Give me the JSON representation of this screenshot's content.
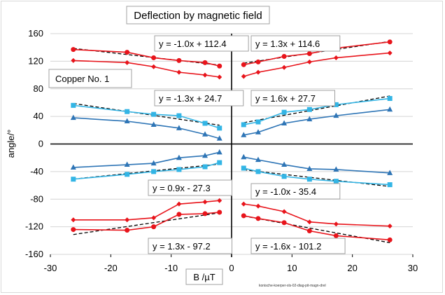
{
  "chart_data": {
    "type": "scatter",
    "title": "Deflection by magnetic field",
    "xlabel": "B /µT",
    "ylabel": "angle/°",
    "xlim": [
      -30,
      30
    ],
    "ylim": [
      -160,
      160
    ],
    "xticks": [
      -30,
      -20,
      -10,
      0,
      10,
      20,
      30
    ],
    "yticks": [
      -160,
      -120,
      -80,
      -40,
      0,
      40,
      80,
      120,
      160
    ],
    "grid": "horizontal",
    "legend": "none",
    "annotation": "Copper No. 1",
    "footnote": "konische-koerper-xls-02-diag-pit-magn-drel",
    "colors": {
      "red": "#e8141b",
      "blue": "#2e75b6",
      "cyan": "#33b5e5",
      "trend": "#000000"
    },
    "series": [
      {
        "color": "#e8141b",
        "marker": "circle",
        "x": [
          -26.2,
          -17.3,
          -12.9,
          -8.7,
          -4.4,
          -2.0
        ],
        "y": [
          137,
          133,
          125,
          121,
          118,
          113
        ]
      },
      {
        "color": "#e8141b",
        "marker": "diamond",
        "x": [
          -26.2,
          -17.3,
          -12.9,
          -8.7,
          -4.4,
          -2.0
        ],
        "y": [
          121,
          118,
          112,
          104,
          100,
          97
        ]
      },
      {
        "color": "#e8141b",
        "marker": "circle",
        "x": [
          2.0,
          4.4,
          8.7,
          12.9,
          17.3,
          26.2
        ],
        "y": [
          115,
          119,
          127,
          131,
          139,
          148
        ]
      },
      {
        "color": "#e8141b",
        "marker": "diamond",
        "x": [
          2.0,
          4.4,
          8.7,
          12.9,
          17.3,
          26.2
        ],
        "y": [
          98,
          104,
          111,
          119,
          125,
          132
        ]
      },
      {
        "color": "#33b5e5",
        "marker": "square",
        "x": [
          -26.2,
          -17.3,
          -12.9,
          -8.7,
          -4.4,
          -2.0
        ],
        "y": [
          56,
          47,
          43,
          41,
          30,
          23
        ]
      },
      {
        "color": "#2e75b6",
        "marker": "triangle",
        "x": [
          -26.2,
          -17.3,
          -12.9,
          -8.7,
          -4.4,
          -2.0
        ],
        "y": [
          38,
          33,
          28,
          23,
          14,
          8
        ]
      },
      {
        "color": "#33b5e5",
        "marker": "square",
        "x": [
          2.0,
          4.4,
          8.7,
          12.9,
          17.3,
          26.2
        ],
        "y": [
          28,
          32,
          46,
          50,
          57,
          66
        ]
      },
      {
        "color": "#2e75b6",
        "marker": "triangle",
        "x": [
          2.0,
          4.4,
          8.7,
          12.9,
          17.3,
          26.2
        ],
        "y": [
          13,
          17,
          30,
          36,
          41,
          50
        ]
      },
      {
        "color": "#2e75b6",
        "marker": "triangle",
        "x": [
          -26.2,
          -17.3,
          -12.9,
          -8.7,
          -4.4,
          -2.0
        ],
        "y": [
          -34,
          -30,
          -28,
          -20,
          -17,
          -12
        ]
      },
      {
        "color": "#33b5e5",
        "marker": "square",
        "x": [
          -26.2,
          -17.3,
          -12.9,
          -8.7,
          -4.4,
          -2.0
        ],
        "y": [
          -51,
          -44,
          -40,
          -37,
          -33,
          -27
        ]
      },
      {
        "color": "#2e75b6",
        "marker": "triangle",
        "x": [
          2.0,
          4.4,
          8.7,
          12.9,
          17.3,
          26.2
        ],
        "y": [
          -19,
          -23,
          -30,
          -36,
          -37,
          -42
        ]
      },
      {
        "color": "#33b5e5",
        "marker": "square",
        "x": [
          2.0,
          4.4,
          8.7,
          12.9,
          17.3,
          26.2
        ],
        "y": [
          -35,
          -40,
          -47,
          -51,
          -54,
          -59
        ]
      },
      {
        "color": "#e8141b",
        "marker": "diamond",
        "x": [
          -26.2,
          -17.3,
          -12.9,
          -8.7,
          -4.4,
          -2.0
        ],
        "y": [
          -110,
          -110,
          -107,
          -87,
          -84,
          -82
        ]
      },
      {
        "color": "#e8141b",
        "marker": "circle",
        "x": [
          -26.2,
          -17.3,
          -12.9,
          -8.7,
          -4.4,
          -2.0
        ],
        "y": [
          -124,
          -125,
          -120,
          -102,
          -101,
          -99
        ]
      },
      {
        "color": "#e8141b",
        "marker": "diamond",
        "x": [
          2.0,
          4.4,
          8.7,
          12.9,
          17.3,
          26.2
        ],
        "y": [
          -87,
          -90,
          -98,
          -113,
          -116,
          -119
        ]
      },
      {
        "color": "#e8141b",
        "marker": "circle",
        "x": [
          2.0,
          4.4,
          8.7,
          12.9,
          17.3,
          26.2
        ],
        "y": [
          -104,
          -108,
          -114,
          -126,
          -133,
          -139
        ]
      }
    ],
    "trendlines": [
      {
        "label": "y = -1.0x + 112.4",
        "slope": -1.0,
        "intercept": 112.4,
        "x": [
          -26.2,
          -2.0
        ]
      },
      {
        "label": "y = 1.3x + 114.6",
        "slope": 1.3,
        "intercept": 114.6,
        "x": [
          2.0,
          26.2
        ]
      },
      {
        "label": "y = -1.3x + 24.7",
        "slope": -1.3,
        "intercept": 24.7,
        "x": [
          -26.2,
          -2.0
        ]
      },
      {
        "label": "y = 1.6x + 27.7",
        "slope": 1.6,
        "intercept": 27.7,
        "x": [
          2.0,
          26.2
        ]
      },
      {
        "label": "y = 0.9x - 27.3",
        "slope": 0.9,
        "intercept": -27.3,
        "x": [
          -26.2,
          -2.0
        ]
      },
      {
        "label": "y = -1.0x - 35.4",
        "slope": -1.0,
        "intercept": -35.4,
        "x": [
          2.0,
          26.2
        ]
      },
      {
        "label": "y = 1.3x - 97.2",
        "slope": 1.3,
        "intercept": -97.2,
        "x": [
          -26.2,
          -2.0
        ]
      },
      {
        "label": "y = -1.6x - 101.2",
        "slope": -1.6,
        "intercept": -101.2,
        "x": [
          2.0,
          26.2
        ]
      }
    ]
  }
}
